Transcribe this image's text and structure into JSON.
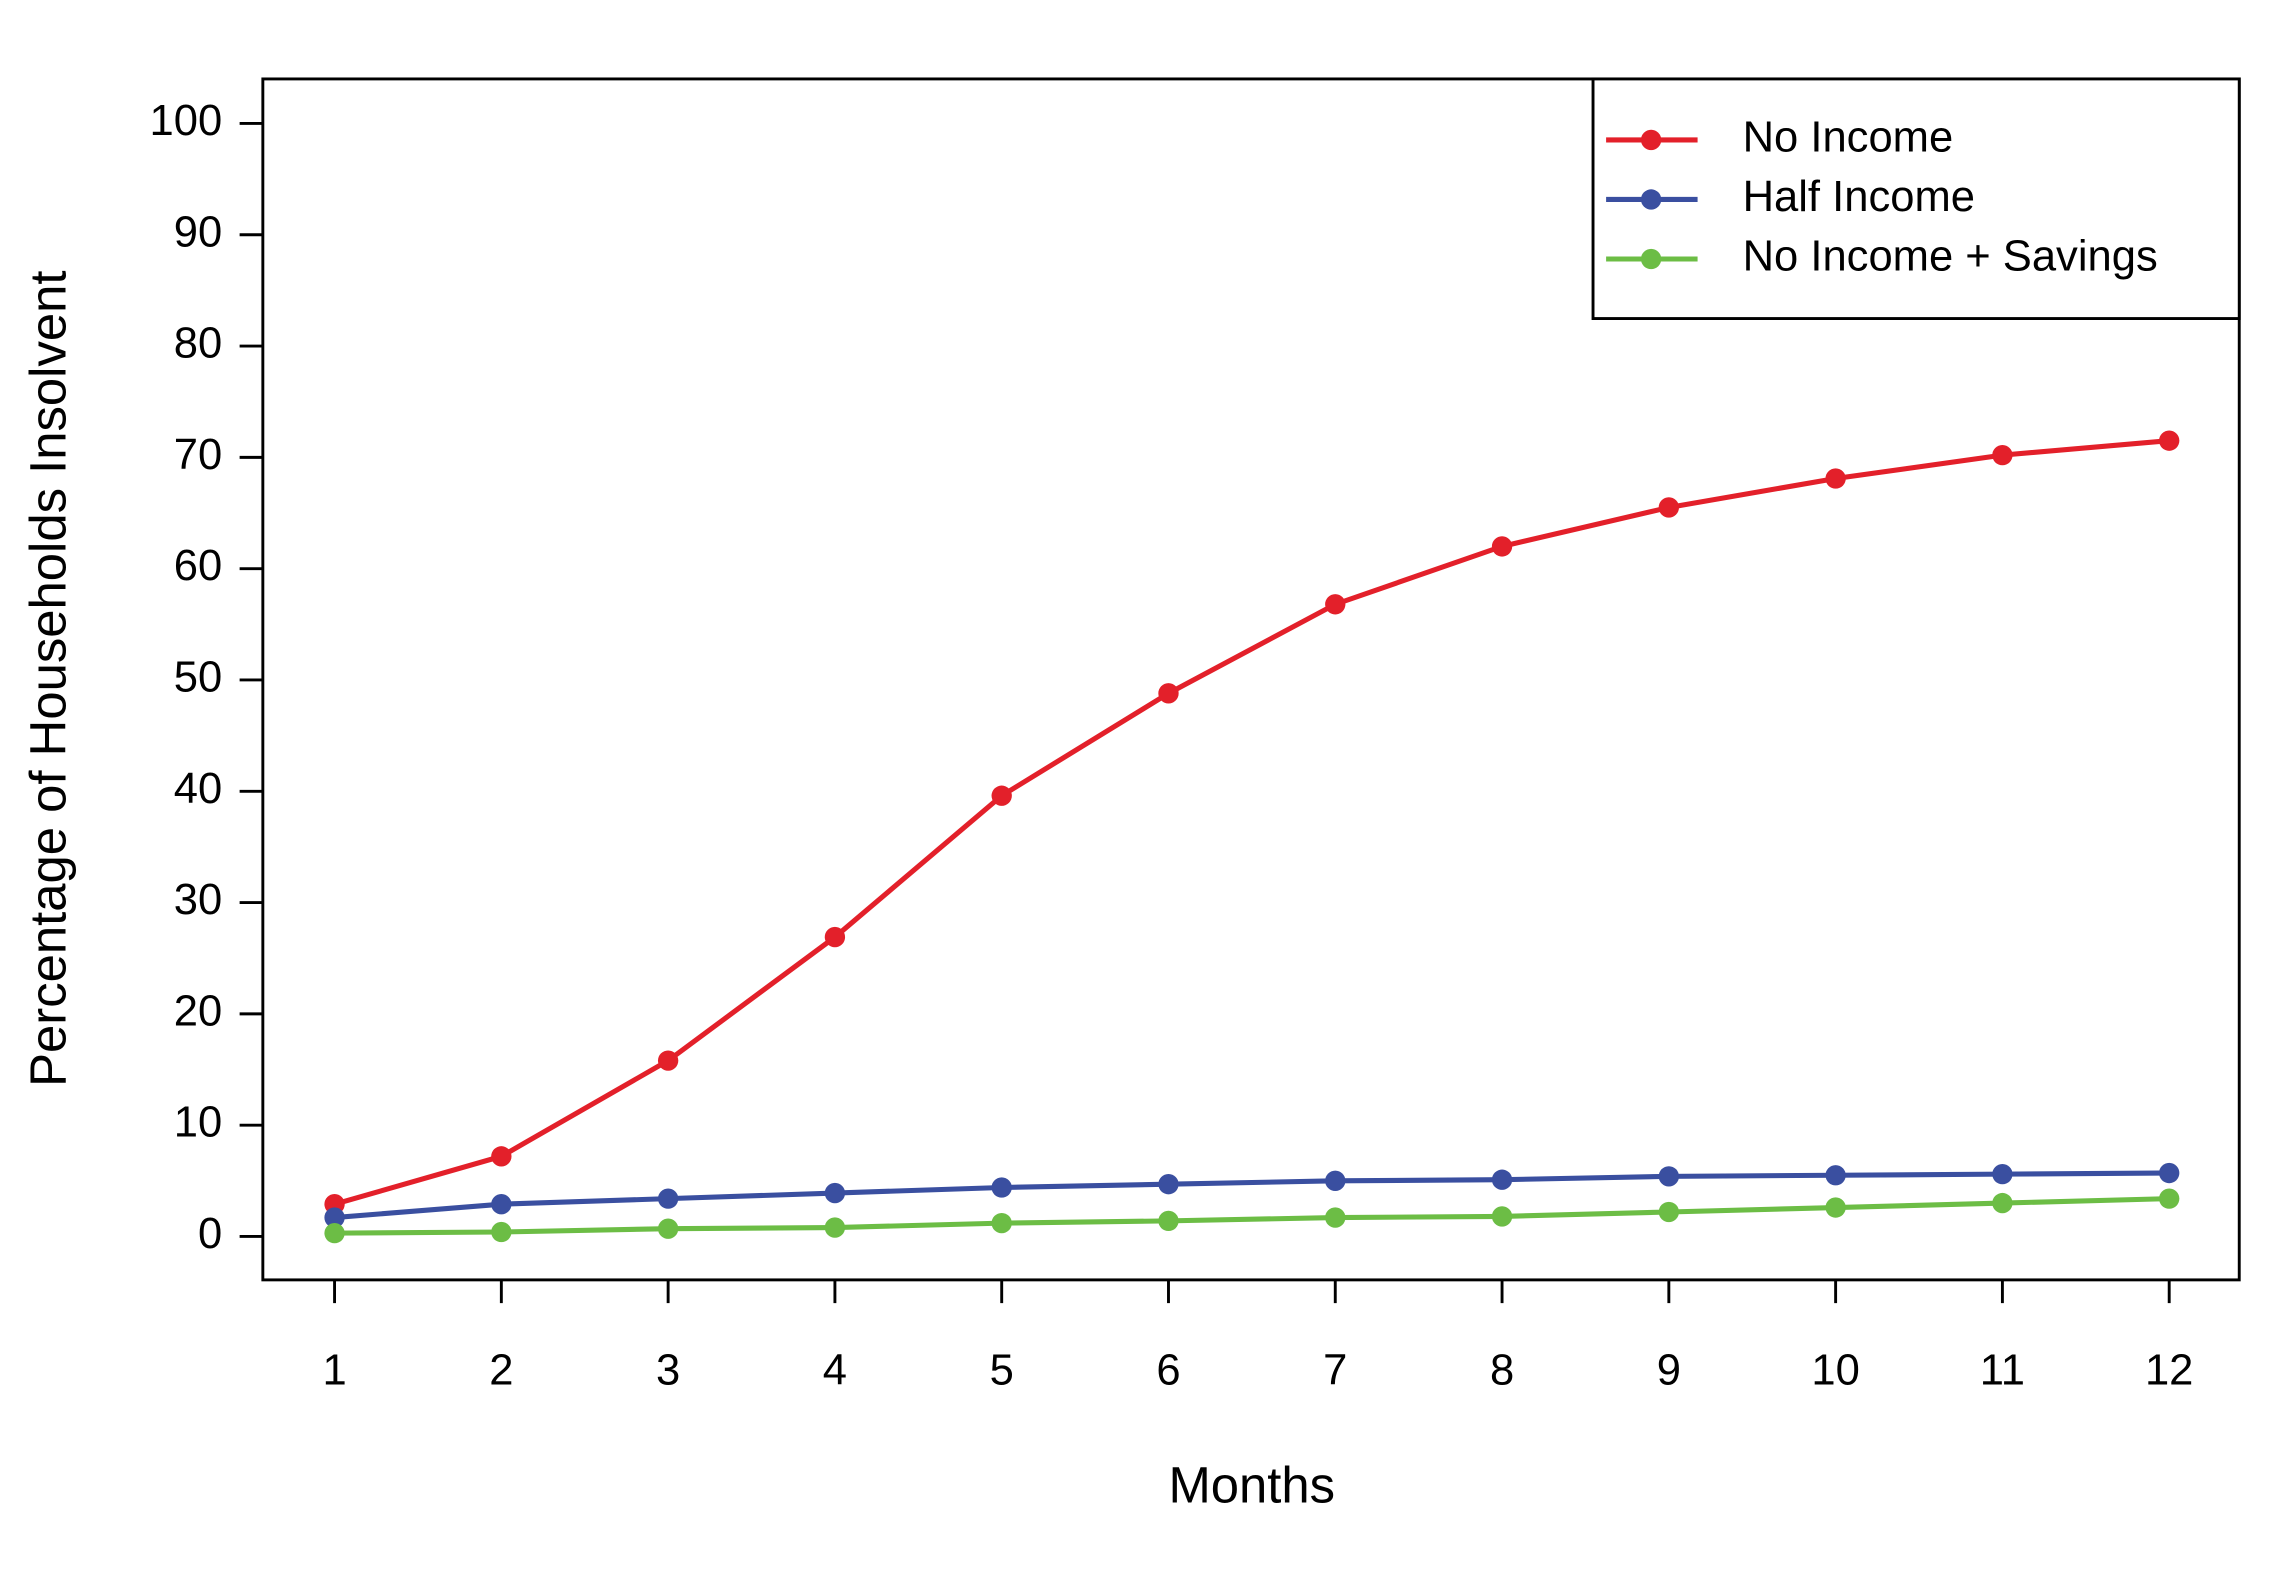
{
  "chart_data": {
    "type": "line",
    "x_label": "Months",
    "y_label": "Percentage of Households Insolvent",
    "x": [
      1,
      2,
      3,
      4,
      5,
      6,
      7,
      8,
      9,
      10,
      11,
      12
    ],
    "series": [
      {
        "name": "No Income",
        "color": "#e3202a",
        "values": [
          2.9,
          7.2,
          15.8,
          26.9,
          39.6,
          48.8,
          56.8,
          62.0,
          65.5,
          68.1,
          70.2,
          71.5
        ]
      },
      {
        "name": "Half Income",
        "color": "#3a4fa0",
        "values": [
          1.7,
          2.9,
          3.4,
          3.9,
          4.4,
          4.7,
          5.0,
          5.1,
          5.4,
          5.5,
          5.6,
          5.7
        ]
      },
      {
        "name": "No Income + Savings",
        "color": "#6cbd45",
        "values": [
          0.3,
          0.4,
          0.7,
          0.8,
          1.2,
          1.4,
          1.7,
          1.8,
          2.2,
          2.6,
          3.0,
          3.4
        ]
      }
    ],
    "xlim": [
      0.57,
      12.42
    ],
    "ylim": [
      -3.9,
      104.0
    ],
    "xticks": [
      1,
      2,
      3,
      4,
      5,
      6,
      7,
      8,
      9,
      10,
      11,
      12
    ],
    "yticks": [
      0,
      10,
      20,
      30,
      40,
      50,
      60,
      70,
      80,
      90,
      100
    ],
    "grid": false,
    "legend": "top-right"
  }
}
